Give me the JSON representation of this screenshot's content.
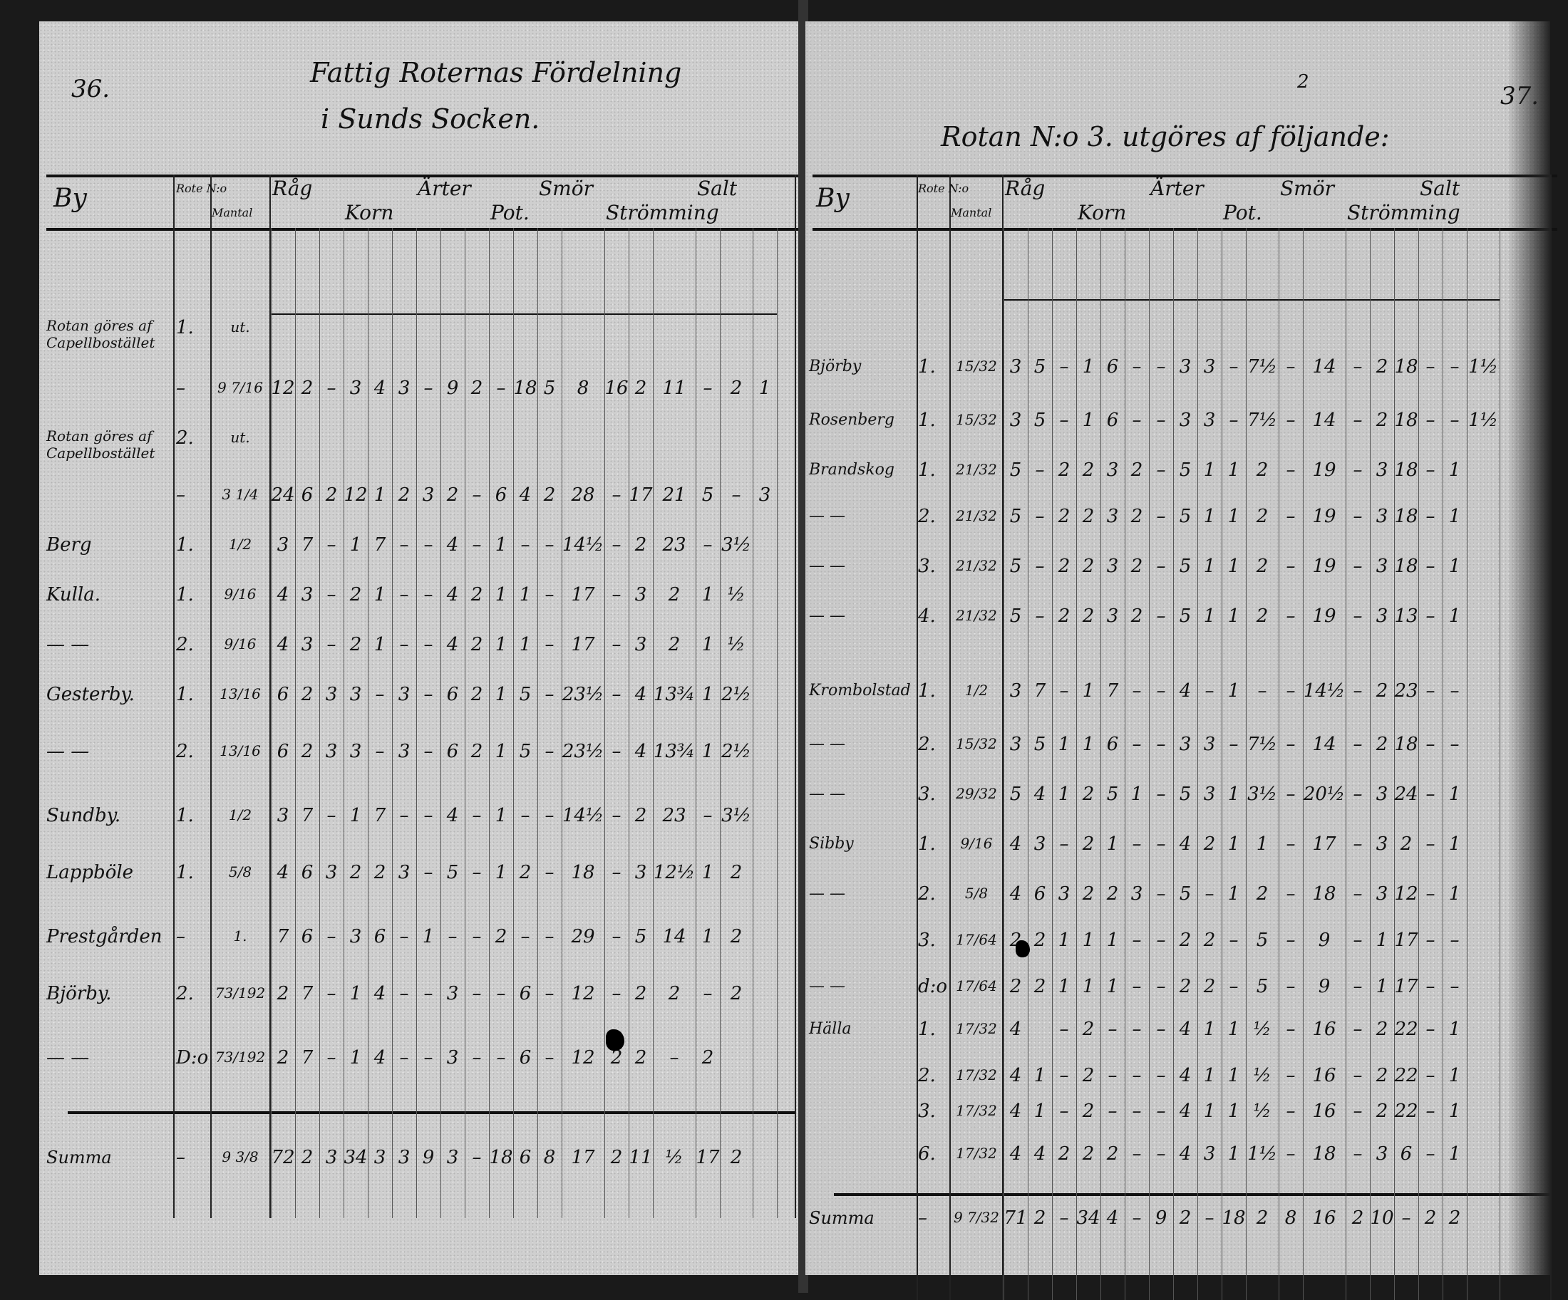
{
  "left_page": {
    "page_number": "36.",
    "title_line1": "Fattig Roternas Fördelning",
    "title_line2": "i Sunds Socken.",
    "headers": [
      "By",
      "Rote N:o",
      "Mantal",
      "Råg",
      "Korn",
      "Ärter",
      "Pot.",
      "Smör",
      "Strömming",
      "Salt"
    ],
    "rows": [
      {
        "by": "Rotan göres af Capellbostället",
        "rote": "1.",
        "mantal": "ut.",
        "values": []
      },
      {
        "by": "",
        "rote": "–",
        "mantal": "9 7/16",
        "values": [
          "12",
          "2",
          "–",
          "3",
          "4",
          "3",
          "–",
          "9",
          "2",
          "–",
          "18",
          "5",
          "8",
          "16",
          "2",
          "11",
          "–",
          "2",
          "1"
        ]
      },
      {
        "by": "Rotan göres af Capellbostället",
        "rote": "2.",
        "mantal": "ut.",
        "values": []
      },
      {
        "by": "",
        "rote": "–",
        "mantal": "3 1/4",
        "values": [
          "24",
          "6",
          "2",
          "12",
          "1",
          "2",
          "3",
          "2",
          "–",
          "6",
          "4",
          "2",
          "28",
          "–",
          "17",
          "21",
          "5",
          "–",
          "3"
        ]
      },
      {
        "by": "Berg",
        "rote": "1.",
        "mantal": "1/2",
        "values": [
          "3",
          "7",
          "–",
          "1",
          "7",
          "–",
          "–",
          "4",
          "–",
          "1",
          "–",
          "–",
          "14½",
          "–",
          "2",
          "23",
          "–",
          "3½"
        ]
      },
      {
        "by": "Kulla.",
        "rote": "1.",
        "mantal": "9/16",
        "values": [
          "4",
          "3",
          "–",
          "2",
          "1",
          "–",
          "–",
          "4",
          "2",
          "1",
          "1",
          "–",
          "17",
          "–",
          "3",
          "2",
          "1",
          "½"
        ]
      },
      {
        "by": "— —",
        "rote": "2.",
        "mantal": "9/16",
        "values": [
          "4",
          "3",
          "–",
          "2",
          "1",
          "–",
          "–",
          "4",
          "2",
          "1",
          "1",
          "–",
          "17",
          "–",
          "3",
          "2",
          "1",
          "½"
        ]
      },
      {
        "by": "Gesterby.",
        "rote": "1.",
        "mantal": "13/16",
        "values": [
          "6",
          "2",
          "3",
          "3",
          "–",
          "3",
          "–",
          "6",
          "2",
          "1",
          "5",
          "–",
          "23½",
          "–",
          "4",
          "13¾",
          "1",
          "2½"
        ]
      },
      {
        "by": "— —",
        "rote": "2.",
        "mantal": "13/16",
        "values": [
          "6",
          "2",
          "3",
          "3",
          "–",
          "3",
          "–",
          "6",
          "2",
          "1",
          "5",
          "–",
          "23½",
          "–",
          "4",
          "13¾",
          "1",
          "2½"
        ]
      },
      {
        "by": "Sundby.",
        "rote": "1.",
        "mantal": "1/2",
        "values": [
          "3",
          "7",
          "–",
          "1",
          "7",
          "–",
          "–",
          "4",
          "–",
          "1",
          "–",
          "–",
          "14½",
          "–",
          "2",
          "23",
          "–",
          "3½"
        ]
      },
      {
        "by": "Lappböle",
        "rote": "1.",
        "mantal": "5/8",
        "values": [
          "4",
          "6",
          "3",
          "2",
          "2",
          "3",
          "–",
          "5",
          "–",
          "1",
          "2",
          "–",
          "18",
          "–",
          "3",
          "12½",
          "1",
          "2"
        ]
      },
      {
        "by": "Prestgården",
        "rote": "–",
        "mantal": "1.",
        "values": [
          "7",
          "6",
          "–",
          "3",
          "6",
          "–",
          "1",
          "–",
          "–",
          "2",
          "–",
          "–",
          "29",
          "–",
          "5",
          "14",
          "1",
          "2"
        ]
      },
      {
        "by": "Björby.",
        "rote": "2.",
        "mantal": "73/192",
        "values": [
          "2",
          "7",
          "–",
          "1",
          "4",
          "–",
          "–",
          "3",
          "–",
          "–",
          "6",
          "–",
          "12",
          "–",
          "2",
          "2",
          "–",
          "2"
        ]
      },
      {
        "by": "— —",
        "rote": "D:o",
        "mantal": "73/192",
        "values": [
          "2",
          "7",
          "–",
          "1",
          "4",
          "–",
          "–",
          "3",
          "–",
          "–",
          "6",
          "–",
          "12",
          "2",
          "2",
          "–",
          "2"
        ]
      }
    ],
    "summa": {
      "label": "Summa",
      "rote": "–",
      "mantal": "9 3/8",
      "values": [
        "72",
        "2",
        "3",
        "34",
        "3",
        "3",
        "9",
        "3",
        "–",
        "18",
        "6",
        "8",
        "17",
        "2",
        "11",
        "½",
        "17",
        "2"
      ]
    }
  },
  "right_page": {
    "page_number": "37.",
    "title": "Rotan N:o 3. utgöres af följande:",
    "title_correction": "2",
    "headers": [
      "By",
      "Rote N:o",
      "Mantal",
      "Råg",
      "Korn",
      "Ärter",
      "Pot.",
      "Smör",
      "Strömming",
      "Salt"
    ],
    "rows": [
      {
        "by": "Björby",
        "rote": "1.",
        "mantal": "15/32",
        "values": [
          "3",
          "5",
          "–",
          "1",
          "6",
          "–",
          "–",
          "3",
          "3",
          "–",
          "7½",
          "–",
          "14",
          "–",
          "2",
          "18",
          "–",
          "–",
          "1½"
        ]
      },
      {
        "by": "Rosenberg",
        "rote": "1.",
        "mantal": "15/32",
        "values": [
          "3",
          "5",
          "–",
          "1",
          "6",
          "–",
          "–",
          "3",
          "3",
          "–",
          "7½",
          "–",
          "14",
          "–",
          "2",
          "18",
          "–",
          "–",
          "1½"
        ]
      },
      {
        "by": "Brandskog",
        "rote": "1.",
        "mantal": "21/32",
        "values": [
          "5",
          "–",
          "2",
          "2",
          "3",
          "2",
          "–",
          "5",
          "1",
          "1",
          "2",
          "–",
          "19",
          "–",
          "3",
          "18",
          "–",
          "1"
        ]
      },
      {
        "by": "— —",
        "rote": "2.",
        "mantal": "21/32",
        "values": [
          "5",
          "–",
          "2",
          "2",
          "3",
          "2",
          "–",
          "5",
          "1",
          "1",
          "2",
          "–",
          "19",
          "–",
          "3",
          "18",
          "–",
          "1"
        ]
      },
      {
        "by": "— —",
        "rote": "3.",
        "mantal": "21/32",
        "values": [
          "5",
          "–",
          "2",
          "2",
          "3",
          "2",
          "–",
          "5",
          "1",
          "1",
          "2",
          "–",
          "19",
          "–",
          "3",
          "18",
          "–",
          "1"
        ]
      },
      {
        "by": "— —",
        "rote": "4.",
        "mantal": "21/32",
        "values": [
          "5",
          "–",
          "2",
          "2",
          "3",
          "2",
          "–",
          "5",
          "1",
          "1",
          "2",
          "–",
          "19",
          "–",
          "3",
          "13",
          "–",
          "1"
        ]
      },
      {
        "by": "Krombolstad",
        "rote": "1.",
        "mantal": "1/2",
        "values": [
          "3",
          "7",
          "–",
          "1",
          "7",
          "–",
          "–",
          "4",
          "–",
          "1",
          "–",
          "–",
          "14½",
          "–",
          "2",
          "23",
          "–",
          "–"
        ]
      },
      {
        "by": "— —",
        "rote": "2.",
        "mantal": "15/32",
        "values": [
          "3",
          "5",
          "1",
          "1",
          "6",
          "–",
          "–",
          "3",
          "3",
          "–",
          "7½",
          "–",
          "14",
          "–",
          "2",
          "18",
          "–",
          "–"
        ]
      },
      {
        "by": "— —",
        "rote": "3.",
        "mantal": "29/32",
        "values": [
          "5",
          "4",
          "1",
          "2",
          "5",
          "1",
          "–",
          "5",
          "3",
          "1",
          "3½",
          "–",
          "20½",
          "–",
          "3",
          "24",
          "–",
          "1"
        ]
      },
      {
        "by": "Sibby",
        "rote": "1.",
        "mantal": "9/16",
        "values": [
          "4",
          "3",
          "–",
          "2",
          "1",
          "–",
          "–",
          "4",
          "2",
          "1",
          "1",
          "–",
          "17",
          "–",
          "3",
          "2",
          "–",
          "1"
        ]
      },
      {
        "by": "— —",
        "rote": "2.",
        "mantal": "5/8",
        "values": [
          "4",
          "6",
          "3",
          "2",
          "2",
          "3",
          "–",
          "5",
          "–",
          "1",
          "2",
          "–",
          "18",
          "–",
          "3",
          "12",
          "–",
          "1"
        ]
      },
      {
        "by": "",
        "rote": "3.",
        "mantal": "17/64",
        "values": [
          "2",
          "2",
          "1",
          "1",
          "1",
          "–",
          "–",
          "2",
          "2",
          "–",
          "5",
          "–",
          "9",
          "–",
          "1",
          "17",
          "–",
          "–"
        ]
      },
      {
        "by": "— —",
        "rote": "d:o",
        "mantal": "17/64",
        "values": [
          "2",
          "2",
          "1",
          "1",
          "1",
          "–",
          "–",
          "2",
          "2",
          "–",
          "5",
          "–",
          "9",
          "–",
          "1",
          "17",
          "–",
          "–"
        ]
      },
      {
        "by": "Hälla",
        "rote": "1.",
        "mantal": "17/32",
        "values": [
          "4",
          "",
          "–",
          "2",
          "–",
          "–",
          "–",
          "4",
          "1",
          "1",
          "½",
          "–",
          "16",
          "–",
          "2",
          "22",
          "–",
          "1"
        ]
      },
      {
        "by": "",
        "rote": "2.",
        "mantal": "17/32",
        "values": [
          "4",
          "1",
          "–",
          "2",
          "–",
          "–",
          "–",
          "4",
          "1",
          "1",
          "½",
          "–",
          "16",
          "–",
          "2",
          "22",
          "–",
          "1"
        ]
      },
      {
        "by": "",
        "rote": "3.",
        "mantal": "17/32",
        "values": [
          "4",
          "1",
          "–",
          "2",
          "–",
          "–",
          "–",
          "4",
          "1",
          "1",
          "½",
          "–",
          "16",
          "–",
          "2",
          "22",
          "–",
          "1"
        ]
      },
      {
        "by": "",
        "rote": "6.",
        "mantal": "17/32",
        "values": [
          "4",
          "4",
          "2",
          "2",
          "2",
          "–",
          "–",
          "4",
          "3",
          "1",
          "1½",
          "–",
          "18",
          "–",
          "3",
          "6",
          "–",
          "1"
        ]
      }
    ],
    "summa": {
      "label": "Summa",
      "rote": "–",
      "mantal": "9 7/32",
      "values": [
        "71",
        "2",
        "–",
        "34",
        "4",
        "–",
        "9",
        "2",
        "–",
        "18",
        "2",
        "8",
        "16",
        "2",
        "10",
        "–",
        "2",
        "2"
      ]
    }
  }
}
